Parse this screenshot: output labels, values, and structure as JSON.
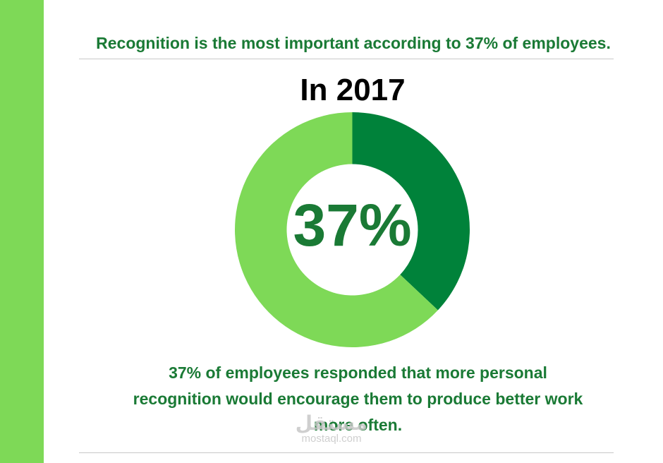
{
  "headline": "Recognition is the most important according to 37% of employees.",
  "colors": {
    "sidebar": "#7ed957",
    "headline_text": "#1a7a35",
    "segment_dark": "#00823a",
    "segment_light": "#7ed957"
  },
  "chart_data": {
    "type": "pie",
    "title": "In 2017",
    "center_label": "37%",
    "slices": [
      {
        "value": 37,
        "color": "#00823a"
      },
      {
        "value": 63,
        "color": "#7ed957"
      }
    ],
    "start_angle_deg": 0,
    "direction": "clockwise",
    "legend": "none"
  },
  "caption": {
    "lines": [
      "37% of employees responded that more personal",
      "recognition would encourage them to produce better work",
      "more often."
    ]
  },
  "watermark": {
    "arabic": "مستقل",
    "latin": "mostaql.com"
  }
}
